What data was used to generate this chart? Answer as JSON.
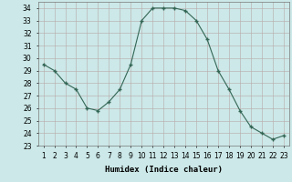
{
  "x": [
    1,
    2,
    3,
    4,
    5,
    6,
    7,
    8,
    9,
    10,
    11,
    12,
    13,
    14,
    15,
    16,
    17,
    18,
    19,
    20,
    21,
    22,
    23
  ],
  "y": [
    29.5,
    29,
    28,
    27.5,
    26,
    25.8,
    26.5,
    27.5,
    29.5,
    33,
    34,
    34,
    34,
    33.8,
    33,
    31.5,
    29,
    27.5,
    25.8,
    24.5,
    24,
    23.5,
    23.8
  ],
  "line_color": "#336655",
  "marker": "D",
  "marker_size": 2.5,
  "bg_color": "#cce8e8",
  "grid_color": "#b8a8a8",
  "xlabel": "Humidex (Indice chaleur)",
  "xlim_min": 0.5,
  "xlim_max": 23.5,
  "ylim_min": 23,
  "ylim_max": 34.5,
  "yticks": [
    23,
    24,
    25,
    26,
    27,
    28,
    29,
    30,
    31,
    32,
    33,
    34
  ],
  "xticks": [
    1,
    2,
    3,
    4,
    5,
    6,
    7,
    8,
    9,
    10,
    11,
    12,
    13,
    14,
    15,
    16,
    17,
    18,
    19,
    20,
    21,
    22,
    23
  ],
  "tick_fontsize": 5.5,
  "xlabel_fontsize": 6.5
}
